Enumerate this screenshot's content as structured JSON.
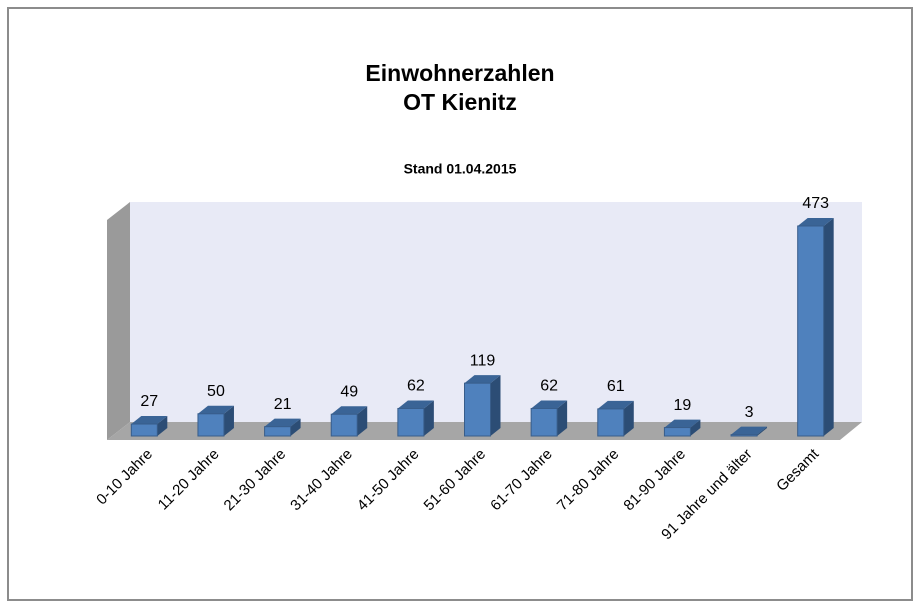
{
  "chart_data": {
    "type": "bar3d",
    "title": [
      "Einwohnerzahlen",
      "OT Kienitz"
    ],
    "subtitle": "Stand 01.04.2015",
    "categories": [
      "0-10 Jahre",
      "11-20 Jahre",
      "21-30 Jahre",
      "31-40 Jahre",
      "41-50 Jahre",
      "51-60 Jahre",
      "61-70 Jahre",
      "71-80 Jahre",
      "81-90 Jahre",
      "91 Jahre und älter",
      "Gesamt"
    ],
    "values": [
      27,
      50,
      21,
      49,
      62,
      119,
      62,
      61,
      19,
      3,
      473
    ],
    "color": "#4f81bd",
    "ylim": [
      0,
      500
    ]
  }
}
